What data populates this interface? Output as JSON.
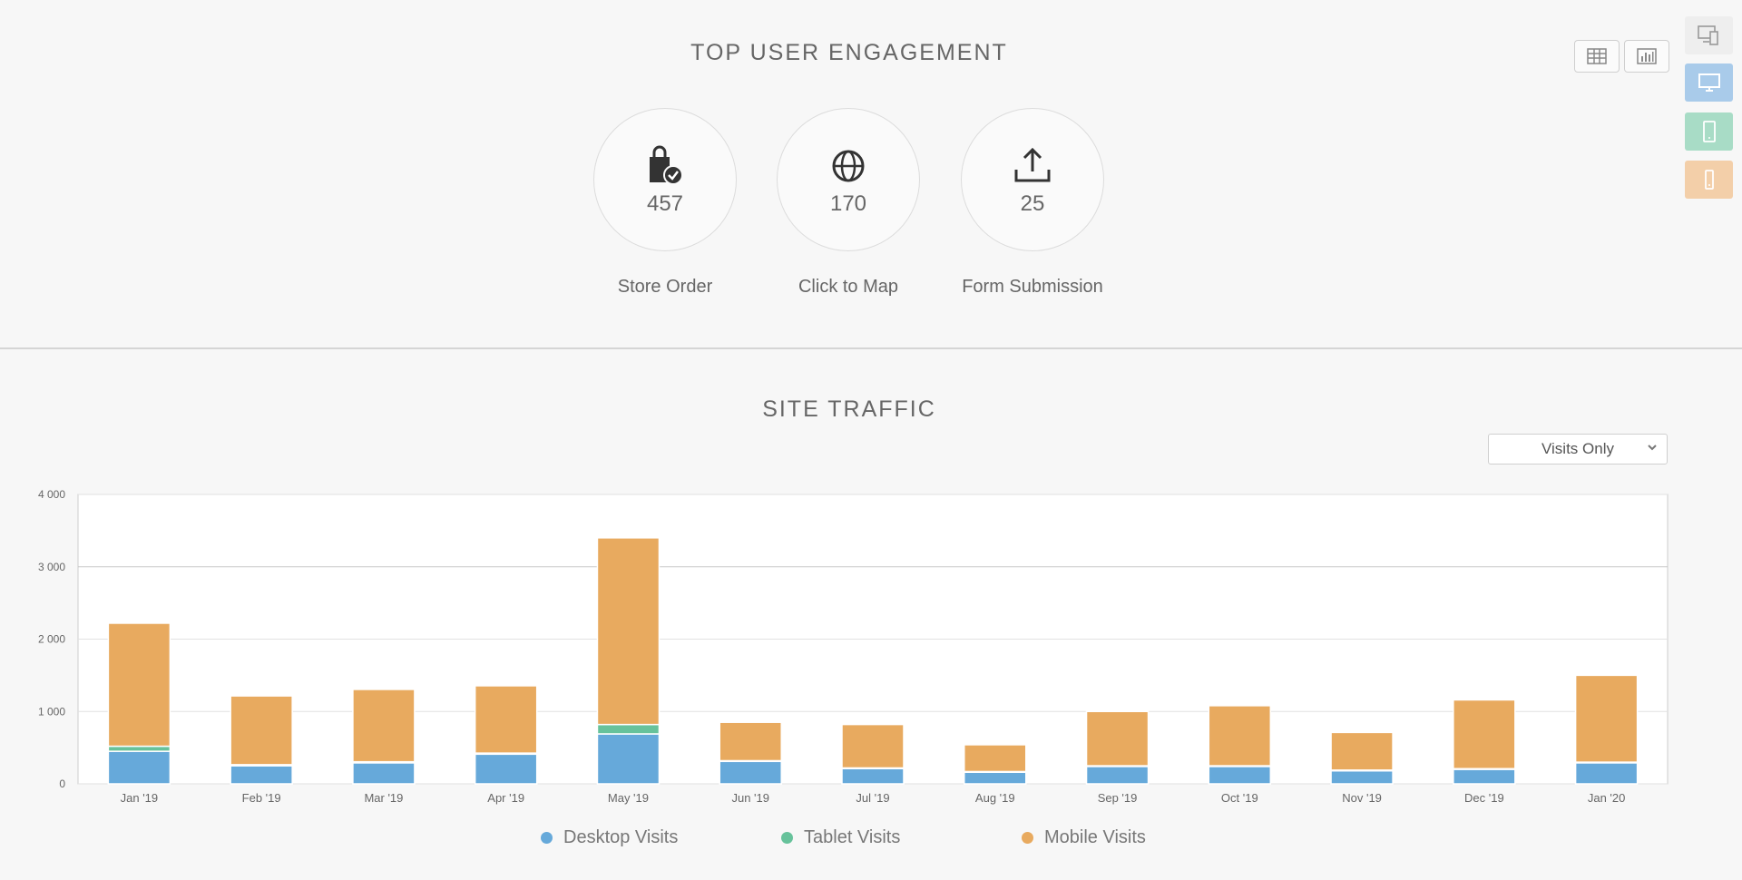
{
  "engagement": {
    "title": "TOP  USER  ENGAGEMENT",
    "metrics": [
      {
        "icon": "shopping-bag-check-icon",
        "value": "457",
        "label": "Store Order"
      },
      {
        "icon": "globe-icon",
        "value": "170",
        "label": "Click to Map"
      },
      {
        "icon": "upload-icon",
        "value": "25",
        "label": "Form Submission"
      }
    ],
    "view_toggle": [
      {
        "icon": "table-icon"
      },
      {
        "icon": "bar-chart-icon"
      }
    ]
  },
  "device_filter": [
    {
      "icon": "all-devices-icon",
      "color": "#eeeeee"
    },
    {
      "icon": "desktop-icon",
      "color": "#a9cbea"
    },
    {
      "icon": "tablet-icon",
      "color": "#a8dcc6"
    },
    {
      "icon": "mobile-icon",
      "color": "#f3cfa9"
    }
  ],
  "traffic": {
    "title": "SITE  TRAFFIC",
    "dropdown": {
      "selected": "Visits Only"
    }
  },
  "chart_data": {
    "type": "bar",
    "stacked": true,
    "categories": [
      "Jan '19",
      "Feb '19",
      "Mar '19",
      "Apr '19",
      "May '19",
      "Jun '19",
      "Jul '19",
      "Aug '19",
      "Sep '19",
      "Oct '19",
      "Nov '19",
      "Dec '19",
      "Jan '20"
    ],
    "series": [
      {
        "name": "Desktop Visits",
        "color": "#66a9da",
        "values": [
          450,
          250,
          290,
          410,
          690,
          310,
          210,
          160,
          240,
          240,
          180,
          200,
          290
        ]
      },
      {
        "name": "Tablet Visits",
        "color": "#67c29b",
        "values": [
          70,
          15,
          15,
          15,
          130,
          10,
          10,
          10,
          10,
          10,
          10,
          10,
          10
        ]
      },
      {
        "name": "Mobile Visits",
        "color": "#e8aa5f",
        "values": [
          1700,
          950,
          1000,
          930,
          2580,
          530,
          600,
          370,
          750,
          830,
          520,
          950,
          1200
        ]
      }
    ],
    "y_ticks": [
      "0",
      "1 000",
      "2 000",
      "3 000",
      "4 000"
    ],
    "ylim": [
      0,
      4000
    ],
    "grid": true,
    "legend": "bottom"
  }
}
